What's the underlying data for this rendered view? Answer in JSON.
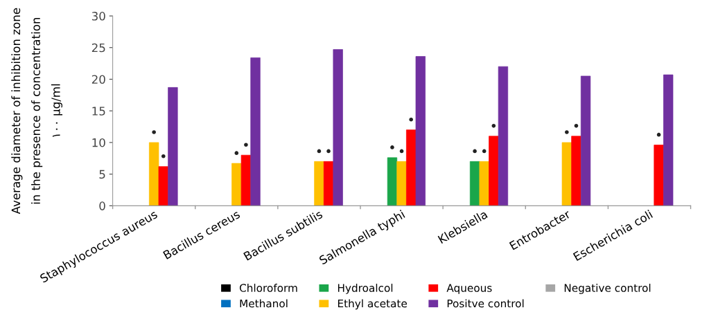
{
  "chart_data": {
    "type": "bar",
    "ylabel": "Average diameter of inhibition zone\nin the presence of concentration\n۱۰۰ μg/ml",
    "categories": [
      "Staphylococcus aureus",
      "Bacillus cereus",
      "Bacillus subtilis",
      "Salmonella typhi",
      "Klebsiella",
      "Entrobacter",
      "Escherichia coli"
    ],
    "series": [
      {
        "name": "Chloroform",
        "color": "#000000",
        "values": [
          null,
          null,
          null,
          null,
          null,
          null,
          null
        ]
      },
      {
        "name": "Methanol",
        "color": "#0070c0",
        "values": [
          null,
          null,
          null,
          null,
          null,
          null,
          null
        ]
      },
      {
        "name": "Hydroalcol",
        "color": "#1aa64a",
        "values": [
          null,
          null,
          null,
          7.6,
          7.0,
          null,
          null
        ],
        "value_labels": [
          null,
          null,
          null,
          "•",
          "•",
          null,
          null
        ]
      },
      {
        "name": "Ethyl acetate",
        "color": "#ffc000",
        "values": [
          10.0,
          6.7,
          7.0,
          7.0,
          7.0,
          10.0,
          null
        ],
        "value_labels": [
          "•",
          "•",
          "•",
          "•",
          "•",
          "•",
          null
        ]
      },
      {
        "name": "Aqueous",
        "color": "#ff0000",
        "values": [
          6.2,
          8.0,
          7.0,
          12.0,
          11.0,
          11.0,
          9.6
        ],
        "value_labels": [
          "•",
          "•",
          "•",
          "•",
          "•",
          "•",
          "•"
        ]
      },
      {
        "name": "Positve control",
        "color": "#7030a0",
        "values": [
          18.7,
          23.4,
          24.7,
          23.6,
          22.0,
          20.5,
          20.7
        ]
      },
      {
        "name": "Negative control",
        "color": "#a6a6a6",
        "values": [
          null,
          null,
          null,
          null,
          null,
          null,
          null
        ]
      }
    ],
    "ylim": [
      0,
      30
    ],
    "yticks": [
      0,
      5,
      10,
      15,
      20,
      25,
      30
    ],
    "grid": false,
    "legend": "bottom"
  }
}
